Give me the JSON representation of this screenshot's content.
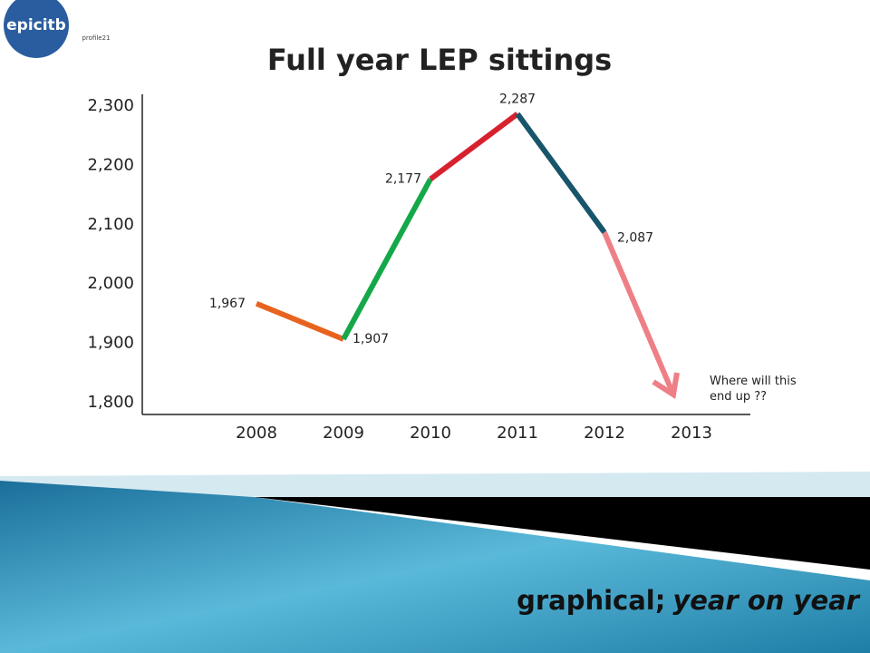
{
  "logos": [
    "epicitb",
    "profile21"
  ],
  "footer": {
    "plain": "graphical;",
    "italic": "year on year"
  },
  "chart_data": {
    "type": "line",
    "title": "Full year LEP sittings",
    "categories": [
      "2008",
      "2009",
      "2010",
      "2011",
      "2012",
      "2013"
    ],
    "values": [
      1967,
      1907,
      2177,
      2287,
      2087,
      null
    ],
    "value_labels": [
      "1,967",
      "1,907",
      "2,177",
      "2,287",
      "2,087",
      null
    ],
    "segment_colors": [
      "#e8631f",
      "#14a84a",
      "#d8212f",
      "#17556a",
      "#ef7f86"
    ],
    "ylim": [
      1780,
      2320
    ],
    "yticks": [
      {
        "value": 1800,
        "label": "1,800"
      },
      {
        "value": 1900,
        "label": "1,900"
      },
      {
        "value": 2000,
        "label": "2,000"
      },
      {
        "value": 2100,
        "label": "2,100"
      },
      {
        "value": 2200,
        "label": "2,200"
      },
      {
        "value": 2300,
        "label": "2,300"
      }
    ],
    "annotation": "Where will this end up ??"
  }
}
